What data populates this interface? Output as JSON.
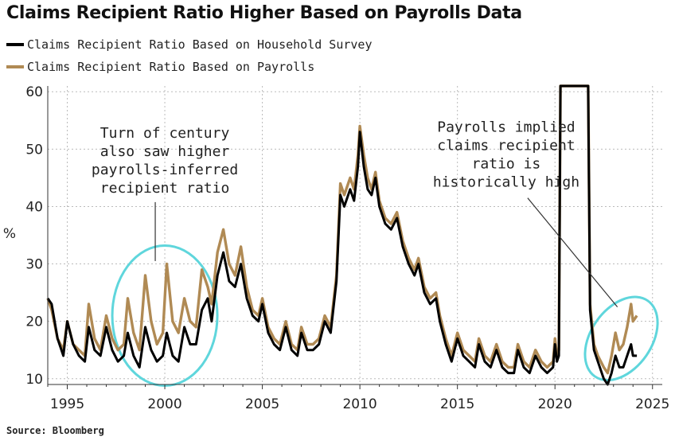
{
  "title": "Claims Recipient Ratio Higher Based on Payrolls Data",
  "source": "Source: Bloomberg",
  "colors": {
    "household": "#000000",
    "payrolls": "#b08a54",
    "circle": "#5fd6dc",
    "grid": "#bbbbbb"
  },
  "chart_data": {
    "type": "line",
    "title": "Claims Recipient Ratio Higher Based on Payrolls Data",
    "ylabel": "%",
    "xlim": [
      1994,
      2025.5
    ],
    "ylim": [
      9,
      61
    ],
    "grid": true,
    "legend_position": "top-left",
    "x_ticks": [
      1995,
      2000,
      2005,
      2010,
      2015,
      2020,
      2025
    ],
    "y_ticks": [
      10,
      20,
      30,
      40,
      50,
      60
    ],
    "series": [
      {
        "name": "Claims Recipient Ratio Based on Household Survey",
        "points": [
          [
            1994.0,
            24
          ],
          [
            1994.2,
            23
          ],
          [
            1994.5,
            17
          ],
          [
            1994.8,
            14
          ],
          [
            1995.0,
            20
          ],
          [
            1995.3,
            16
          ],
          [
            1995.6,
            14
          ],
          [
            1995.9,
            13
          ],
          [
            1996.1,
            19
          ],
          [
            1996.4,
            15
          ],
          [
            1996.7,
            14
          ],
          [
            1997.0,
            19
          ],
          [
            1997.3,
            15
          ],
          [
            1997.6,
            13
          ],
          [
            1997.9,
            14
          ],
          [
            1998.1,
            18
          ],
          [
            1998.4,
            14
          ],
          [
            1998.7,
            12
          ],
          [
            1999.0,
            19
          ],
          [
            1999.3,
            15
          ],
          [
            1999.6,
            13
          ],
          [
            1999.9,
            14
          ],
          [
            2000.1,
            18
          ],
          [
            2000.4,
            14
          ],
          [
            2000.7,
            13
          ],
          [
            2001.0,
            19
          ],
          [
            2001.3,
            16
          ],
          [
            2001.6,
            16
          ],
          [
            2001.9,
            22
          ],
          [
            2002.2,
            24
          ],
          [
            2002.4,
            20
          ],
          [
            2002.7,
            28
          ],
          [
            2003.0,
            32
          ],
          [
            2003.3,
            27
          ],
          [
            2003.6,
            26
          ],
          [
            2003.9,
            30
          ],
          [
            2004.2,
            24
          ],
          [
            2004.5,
            21
          ],
          [
            2004.8,
            20
          ],
          [
            2005.0,
            23
          ],
          [
            2005.3,
            18
          ],
          [
            2005.6,
            16
          ],
          [
            2005.9,
            15
          ],
          [
            2006.2,
            19
          ],
          [
            2006.5,
            15
          ],
          [
            2006.8,
            14
          ],
          [
            2007.0,
            18
          ],
          [
            2007.3,
            15
          ],
          [
            2007.6,
            15
          ],
          [
            2007.9,
            16
          ],
          [
            2008.2,
            20
          ],
          [
            2008.5,
            18
          ],
          [
            2008.8,
            27
          ],
          [
            2009.0,
            42
          ],
          [
            2009.2,
            40
          ],
          [
            2009.5,
            43
          ],
          [
            2009.7,
            41
          ],
          [
            2009.9,
            47
          ],
          [
            2010.0,
            53
          ],
          [
            2010.2,
            47
          ],
          [
            2010.4,
            43
          ],
          [
            2010.6,
            42
          ],
          [
            2010.8,
            45
          ],
          [
            2011.0,
            40
          ],
          [
            2011.3,
            37
          ],
          [
            2011.6,
            36
          ],
          [
            2011.9,
            38
          ],
          [
            2012.2,
            33
          ],
          [
            2012.5,
            30
          ],
          [
            2012.8,
            28
          ],
          [
            2013.0,
            30
          ],
          [
            2013.3,
            25
          ],
          [
            2013.6,
            23
          ],
          [
            2013.9,
            24
          ],
          [
            2014.1,
            20
          ],
          [
            2014.4,
            16
          ],
          [
            2014.7,
            13
          ],
          [
            2015.0,
            17
          ],
          [
            2015.3,
            14
          ],
          [
            2015.6,
            13
          ],
          [
            2015.9,
            12
          ],
          [
            2016.1,
            16
          ],
          [
            2016.4,
            13
          ],
          [
            2016.7,
            12
          ],
          [
            2017.0,
            15
          ],
          [
            2017.3,
            12
          ],
          [
            2017.6,
            11
          ],
          [
            2017.9,
            11
          ],
          [
            2018.1,
            15
          ],
          [
            2018.4,
            12
          ],
          [
            2018.7,
            11
          ],
          [
            2019.0,
            14
          ],
          [
            2019.3,
            12
          ],
          [
            2019.6,
            11
          ],
          [
            2019.9,
            12
          ],
          [
            2020.0,
            16
          ],
          [
            2020.1,
            13
          ],
          [
            2020.2,
            14
          ],
          [
            2020.28,
            62
          ],
          [
            2020.3,
            62
          ],
          [
            2021.6,
            62
          ],
          [
            2021.7,
            62
          ],
          [
            2021.8,
            22
          ],
          [
            2022.0,
            15
          ],
          [
            2022.2,
            13
          ],
          [
            2022.5,
            10
          ],
          [
            2022.7,
            9
          ],
          [
            2022.9,
            11
          ],
          [
            2023.1,
            14
          ],
          [
            2023.3,
            12
          ],
          [
            2023.5,
            12
          ],
          [
            2023.7,
            14
          ],
          [
            2023.9,
            16
          ],
          [
            2024.0,
            14
          ],
          [
            2024.2,
            14
          ]
        ]
      },
      {
        "name": "Claims Recipient Ratio Based on Payrolls",
        "points": [
          [
            1994.0,
            24
          ],
          [
            1994.2,
            22
          ],
          [
            1994.5,
            17
          ],
          [
            1994.8,
            15
          ],
          [
            1995.0,
            20
          ],
          [
            1995.3,
            16
          ],
          [
            1995.6,
            15
          ],
          [
            1995.9,
            14
          ],
          [
            1996.1,
            23
          ],
          [
            1996.4,
            17
          ],
          [
            1996.7,
            15
          ],
          [
            1997.0,
            21
          ],
          [
            1997.3,
            17
          ],
          [
            1997.6,
            15
          ],
          [
            1997.9,
            16
          ],
          [
            1998.1,
            24
          ],
          [
            1998.4,
            18
          ],
          [
            1998.7,
            15
          ],
          [
            1999.0,
            28
          ],
          [
            1999.3,
            20
          ],
          [
            1999.6,
            16
          ],
          [
            1999.9,
            18
          ],
          [
            2000.1,
            30
          ],
          [
            2000.4,
            20
          ],
          [
            2000.7,
            18
          ],
          [
            2001.0,
            24
          ],
          [
            2001.3,
            20
          ],
          [
            2001.6,
            19
          ],
          [
            2001.9,
            29
          ],
          [
            2002.2,
            26
          ],
          [
            2002.4,
            23
          ],
          [
            2002.7,
            32
          ],
          [
            2003.0,
            36
          ],
          [
            2003.3,
            30
          ],
          [
            2003.6,
            28
          ],
          [
            2003.9,
            33
          ],
          [
            2004.2,
            26
          ],
          [
            2004.5,
            22
          ],
          [
            2004.8,
            21
          ],
          [
            2005.0,
            24
          ],
          [
            2005.3,
            19
          ],
          [
            2005.6,
            17
          ],
          [
            2005.9,
            16
          ],
          [
            2006.2,
            20
          ],
          [
            2006.5,
            16
          ],
          [
            2006.8,
            15
          ],
          [
            2007.0,
            19
          ],
          [
            2007.3,
            16
          ],
          [
            2007.6,
            16
          ],
          [
            2007.9,
            17
          ],
          [
            2008.2,
            21
          ],
          [
            2008.5,
            19
          ],
          [
            2008.8,
            28
          ],
          [
            2009.0,
            44
          ],
          [
            2009.2,
            42
          ],
          [
            2009.5,
            45
          ],
          [
            2009.7,
            43
          ],
          [
            2009.9,
            49
          ],
          [
            2010.0,
            54
          ],
          [
            2010.2,
            49
          ],
          [
            2010.4,
            45
          ],
          [
            2010.6,
            43
          ],
          [
            2010.8,
            46
          ],
          [
            2011.0,
            41
          ],
          [
            2011.3,
            38
          ],
          [
            2011.6,
            37
          ],
          [
            2011.9,
            39
          ],
          [
            2012.2,
            34
          ],
          [
            2012.5,
            31
          ],
          [
            2012.8,
            29
          ],
          [
            2013.0,
            31
          ],
          [
            2013.3,
            26
          ],
          [
            2013.6,
            24
          ],
          [
            2013.9,
            25
          ],
          [
            2014.1,
            21
          ],
          [
            2014.4,
            17
          ],
          [
            2014.7,
            14
          ],
          [
            2015.0,
            18
          ],
          [
            2015.3,
            15
          ],
          [
            2015.6,
            14
          ],
          [
            2015.9,
            13
          ],
          [
            2016.1,
            17
          ],
          [
            2016.4,
            14
          ],
          [
            2016.7,
            13
          ],
          [
            2017.0,
            16
          ],
          [
            2017.3,
            13
          ],
          [
            2017.6,
            12
          ],
          [
            2017.9,
            12
          ],
          [
            2018.1,
            16
          ],
          [
            2018.4,
            13
          ],
          [
            2018.7,
            12
          ],
          [
            2019.0,
            15
          ],
          [
            2019.3,
            13
          ],
          [
            2019.6,
            12
          ],
          [
            2019.9,
            13
          ],
          [
            2020.0,
            17
          ],
          [
            2020.1,
            14
          ],
          [
            2020.2,
            15
          ],
          [
            2020.28,
            62
          ],
          [
            2020.3,
            62
          ],
          [
            2021.6,
            62
          ],
          [
            2021.7,
            62
          ],
          [
            2021.8,
            23
          ],
          [
            2022.0,
            16
          ],
          [
            2022.2,
            14
          ],
          [
            2022.5,
            12
          ],
          [
            2022.7,
            11
          ],
          [
            2022.9,
            14
          ],
          [
            2023.1,
            18
          ],
          [
            2023.3,
            15
          ],
          [
            2023.5,
            16
          ],
          [
            2023.7,
            19
          ],
          [
            2023.9,
            23
          ],
          [
            2024.0,
            20
          ],
          [
            2024.2,
            21
          ]
        ]
      }
    ],
    "annotations": [
      {
        "lines": [
          "Turn of century",
          "also saw higher",
          "payrolls-inferred",
          "recipient ratio"
        ],
        "x": 2000,
        "y": 52
      },
      {
        "lines": [
          "Payrolls implied",
          "claims recipient",
          "ratio is",
          "historically high"
        ],
        "x": 2017.5,
        "y": 53
      }
    ]
  }
}
